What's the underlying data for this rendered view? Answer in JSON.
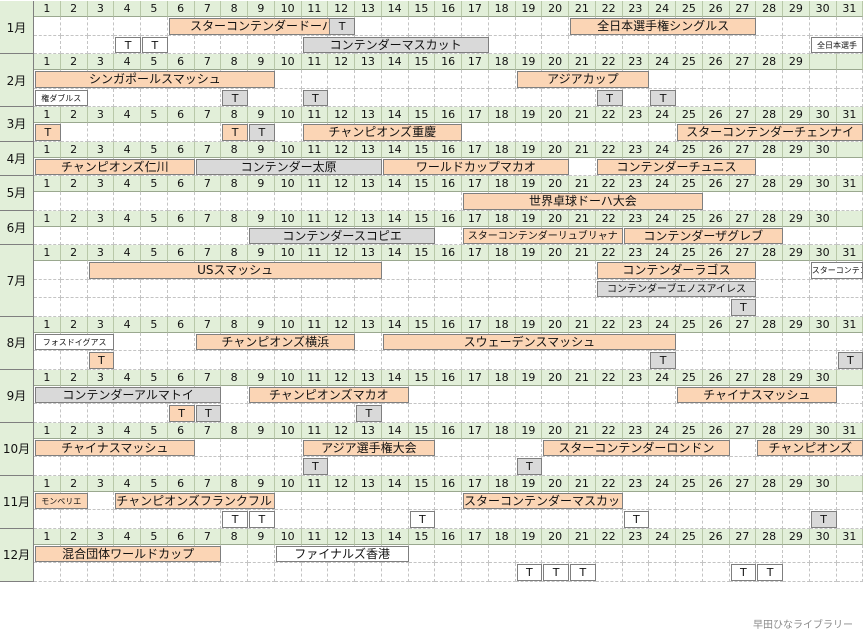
{
  "colors": {
    "header": "#e2efd9",
    "orange": "#fbd5b5",
    "gray": "#d9d9d9",
    "white": "#ffffff"
  },
  "credit": "早田ひなライブラリー",
  "t_label": "T",
  "months": [
    {
      "label": "1月",
      "days": 31,
      "rows": 2,
      "events": [
        {
          "text": "スターコンテンダードーハ",
          "start": 6,
          "end": 12,
          "row": 0,
          "style": "orange"
        },
        {
          "text": "T",
          "start": 12,
          "end": 12,
          "row": 0,
          "style": "gray"
        },
        {
          "text": "全日本選手権シングルス",
          "start": 21,
          "end": 27,
          "row": 0,
          "style": "orange"
        },
        {
          "text": "T",
          "start": 4,
          "end": 4,
          "row": 1,
          "style": "white"
        },
        {
          "text": "T",
          "start": 5,
          "end": 5,
          "row": 1,
          "style": "white"
        },
        {
          "text": "コンテンダーマスカット",
          "start": 11,
          "end": 17,
          "row": 1,
          "style": "gray"
        },
        {
          "text": "全日本選手",
          "start": 30,
          "end": 31,
          "row": 1,
          "style": "white",
          "size": "small"
        }
      ]
    },
    {
      "label": "2月",
      "days": 29,
      "rows": 2,
      "events": [
        {
          "text": "シンガポールスマッシュ",
          "start": 1,
          "end": 9,
          "row": 0,
          "style": "orange"
        },
        {
          "text": "アジアカップ",
          "start": 19,
          "end": 23,
          "row": 0,
          "style": "orange"
        },
        {
          "text": "権ダブルス",
          "start": 1,
          "end": 2,
          "row": 1,
          "style": "white",
          "size": "small"
        },
        {
          "text": "T",
          "start": 8,
          "end": 8,
          "row": 1,
          "style": "gray"
        },
        {
          "text": "T",
          "start": 11,
          "end": 11,
          "row": 1,
          "style": "gray"
        },
        {
          "text": "T",
          "start": 22,
          "end": 22,
          "row": 1,
          "style": "gray"
        },
        {
          "text": "T",
          "start": 24,
          "end": 24,
          "row": 1,
          "style": "gray"
        }
      ]
    },
    {
      "label": "3月",
      "days": 31,
      "rows": 1,
      "events": [
        {
          "text": "T",
          "start": 1,
          "end": 1,
          "row": 0,
          "style": "orange"
        },
        {
          "text": "T",
          "start": 8,
          "end": 8,
          "row": 0,
          "style": "orange"
        },
        {
          "text": "T",
          "start": 9,
          "end": 9,
          "row": 0,
          "style": "gray"
        },
        {
          "text": "チャンピオンズ重慶",
          "start": 11,
          "end": 16,
          "row": 0,
          "style": "orange"
        },
        {
          "text": "スターコンテンダーチェンナイ",
          "start": 25,
          "end": 31,
          "row": 0,
          "style": "orange"
        }
      ]
    },
    {
      "label": "4月",
      "days": 30,
      "rows": 1,
      "events": [
        {
          "text": "チャンピオンズ仁川",
          "start": 1,
          "end": 6,
          "row": 0,
          "style": "orange"
        },
        {
          "text": "コンテンダー太原",
          "start": 7,
          "end": 13,
          "row": 0,
          "style": "gray"
        },
        {
          "text": "ワールドカップマカオ",
          "start": 14,
          "end": 20,
          "row": 0,
          "style": "orange"
        },
        {
          "text": "コンテンダーチュニス",
          "start": 22,
          "end": 27,
          "row": 0,
          "style": "orange"
        }
      ]
    },
    {
      "label": "5月",
      "days": 31,
      "rows": 1,
      "events": [
        {
          "text": "世界卓球ドーハ大会",
          "start": 17,
          "end": 25,
          "row": 0,
          "style": "orange"
        }
      ]
    },
    {
      "label": "6月",
      "days": 30,
      "rows": 1,
      "events": [
        {
          "text": "コンテンダースコピエ",
          "start": 9,
          "end": 15,
          "row": 0,
          "style": "gray"
        },
        {
          "text": "スターコンテンダーリュブリャナ",
          "start": 17,
          "end": 22,
          "row": 0,
          "style": "orange",
          "size": "mid"
        },
        {
          "text": "コンテンダーザグレブ",
          "start": 23,
          "end": 28,
          "row": 0,
          "style": "orange"
        }
      ]
    },
    {
      "label": "7月",
      "days": 31,
      "rows": 3,
      "events": [
        {
          "text": "USスマッシュ",
          "start": 3,
          "end": 13,
          "row": 0,
          "style": "orange"
        },
        {
          "text": "コンテンダーラゴス",
          "start": 22,
          "end": 27,
          "row": 0,
          "style": "orange"
        },
        {
          "text": "スターコンテンダー",
          "start": 30,
          "end": 31,
          "row": 0,
          "style": "white",
          "size": "small"
        },
        {
          "text": "コンテンダーブエノスアイレス",
          "start": 22,
          "end": 27,
          "row": 1,
          "style": "gray",
          "size": "mid"
        },
        {
          "text": "T",
          "start": 27,
          "end": 27,
          "row": 2,
          "style": "gray"
        }
      ]
    },
    {
      "label": "8月",
      "days": 31,
      "rows": 2,
      "events": [
        {
          "text": "フォスドイグアス",
          "start": 1,
          "end": 3,
          "row": 0,
          "style": "white",
          "size": "small"
        },
        {
          "text": "チャンピオンズ横浜",
          "start": 7,
          "end": 12,
          "row": 0,
          "style": "orange"
        },
        {
          "text": "スウェーデンスマッシュ",
          "start": 14,
          "end": 24,
          "row": 0,
          "style": "orange"
        },
        {
          "text": "T",
          "start": 3,
          "end": 3,
          "row": 1,
          "style": "orange"
        },
        {
          "text": "T",
          "start": 24,
          "end": 24,
          "row": 1,
          "style": "gray"
        },
        {
          "text": "T",
          "start": 31,
          "end": 31,
          "row": 1,
          "style": "gray"
        }
      ]
    },
    {
      "label": "9月",
      "days": 30,
      "rows": 2,
      "events": [
        {
          "text": "コンテンダーアルマトイ",
          "start": 1,
          "end": 7,
          "row": 0,
          "style": "gray"
        },
        {
          "text": "チャンピオンズマカオ",
          "start": 9,
          "end": 14,
          "row": 0,
          "style": "orange"
        },
        {
          "text": "チャイナスマッシュ",
          "start": 25,
          "end": 30,
          "row": 0,
          "style": "orange"
        },
        {
          "text": "T",
          "start": 6,
          "end": 6,
          "row": 1,
          "style": "orange"
        },
        {
          "text": "T",
          "start": 7,
          "end": 7,
          "row": 1,
          "style": "gray"
        },
        {
          "text": "T",
          "start": 13,
          "end": 13,
          "row": 1,
          "style": "gray"
        }
      ]
    },
    {
      "label": "10月",
      "days": 31,
      "rows": 2,
      "events": [
        {
          "text": "チャイナスマッシュ",
          "start": 1,
          "end": 6,
          "row": 0,
          "style": "orange"
        },
        {
          "text": "アジア選手権大会",
          "start": 11,
          "end": 15,
          "row": 0,
          "style": "orange"
        },
        {
          "text": "スターコンテンダーロンドン",
          "start": 20,
          "end": 26,
          "row": 0,
          "style": "orange"
        },
        {
          "text": "チャンピオンズ",
          "start": 28,
          "end": 31,
          "row": 0,
          "style": "orange"
        },
        {
          "text": "T",
          "start": 11,
          "end": 11,
          "row": 1,
          "style": "gray"
        },
        {
          "text": "T",
          "start": 19,
          "end": 19,
          "row": 1,
          "style": "gray"
        }
      ]
    },
    {
      "label": "11月",
      "days": 30,
      "rows": 2,
      "events": [
        {
          "text": "モンペリエ",
          "start": 1,
          "end": 2,
          "row": 0,
          "style": "orange",
          "size": "small"
        },
        {
          "text": "チャンピオンズフランクフルト",
          "start": 4,
          "end": 9,
          "row": 0,
          "style": "orange"
        },
        {
          "text": "スターコンテンダーマスカット",
          "start": 17,
          "end": 22,
          "row": 0,
          "style": "orange"
        },
        {
          "text": "T",
          "start": 8,
          "end": 8,
          "row": 1,
          "style": "white"
        },
        {
          "text": "T",
          "start": 9,
          "end": 9,
          "row": 1,
          "style": "white"
        },
        {
          "text": "T",
          "start": 15,
          "end": 15,
          "row": 1,
          "style": "white"
        },
        {
          "text": "T",
          "start": 23,
          "end": 23,
          "row": 1,
          "style": "white"
        },
        {
          "text": "T",
          "start": 30,
          "end": 30,
          "row": 1,
          "style": "gray"
        }
      ]
    },
    {
      "label": "12月",
      "days": 31,
      "rows": 2,
      "events": [
        {
          "text": "混合団体ワールドカップ",
          "start": 1,
          "end": 7,
          "row": 0,
          "style": "orange"
        },
        {
          "text": "ファイナルズ香港",
          "start": 10,
          "end": 14,
          "row": 0,
          "style": "white"
        },
        {
          "text": "T",
          "start": 19,
          "end": 19,
          "row": 1,
          "style": "white"
        },
        {
          "text": "T",
          "start": 20,
          "end": 20,
          "row": 1,
          "style": "white"
        },
        {
          "text": "T",
          "start": 21,
          "end": 21,
          "row": 1,
          "style": "white"
        },
        {
          "text": "T",
          "start": 27,
          "end": 27,
          "row": 1,
          "style": "white"
        },
        {
          "text": "T",
          "start": 28,
          "end": 28,
          "row": 1,
          "style": "white"
        }
      ]
    }
  ]
}
